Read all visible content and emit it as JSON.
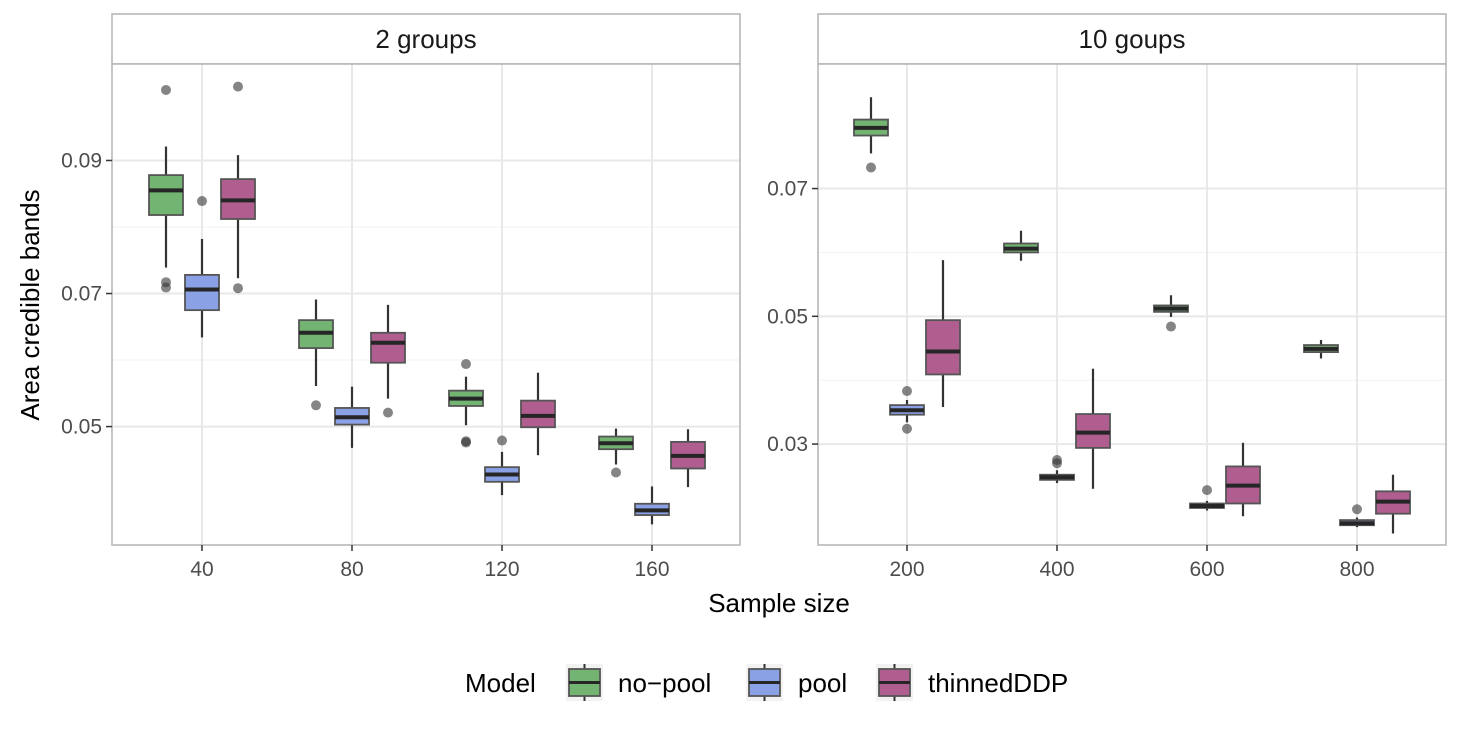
{
  "chart_data": {
    "type": "boxplot",
    "xlabel": "Sample size",
    "ylabel": "Area credible bands",
    "legend": {
      "title": "Model",
      "position": "bottom",
      "entries": [
        {
          "name": "no−pool",
          "color": "#74b472"
        },
        {
          "name": "pool",
          "color": "#8ba1e6"
        },
        {
          "name": "thinnedDDP",
          "color": "#b05d90"
        }
      ]
    },
    "grid": true,
    "panels": [
      {
        "title": "2 groups",
        "x_ticks": [
          40,
          80,
          120,
          160
        ],
        "y_ticks": [
          0.05,
          0.07,
          0.09
        ],
        "ylim": [
          0.0322,
          0.1045
        ],
        "series": [
          {
            "name": "no−pool",
            "boxes": [
              {
                "x": 40,
                "whisker_low": 0.0739,
                "q1": 0.0818,
                "median": 0.0855,
                "q3": 0.0878,
                "whisker_high": 0.0921,
                "outliers": [
                  0.1006,
                  0.0717,
                  0.0709
                ]
              },
              {
                "x": 80,
                "whisker_low": 0.0561,
                "q1": 0.0618,
                "median": 0.0641,
                "q3": 0.066,
                "whisker_high": 0.0691,
                "outliers": [
                  0.0532
                ]
              },
              {
                "x": 120,
                "whisker_low": 0.0502,
                "q1": 0.0531,
                "median": 0.0542,
                "q3": 0.0554,
                "whisker_high": 0.0575,
                "outliers": [
                  0.0594,
                  0.0478,
                  0.0476
                ]
              },
              {
                "x": 160,
                "whisker_low": 0.0443,
                "q1": 0.0466,
                "median": 0.0475,
                "q3": 0.0485,
                "whisker_high": 0.0497,
                "outliers": [
                  0.0431
                ]
              }
            ]
          },
          {
            "name": "pool",
            "boxes": [
              {
                "x": 40,
                "whisker_low": 0.0634,
                "q1": 0.0675,
                "median": 0.0706,
                "q3": 0.0728,
                "whisker_high": 0.0782,
                "outliers": [
                  0.0839
                ]
              },
              {
                "x": 80,
                "whisker_low": 0.0468,
                "q1": 0.0503,
                "median": 0.0514,
                "q3": 0.0528,
                "whisker_high": 0.056,
                "outliers": []
              },
              {
                "x": 120,
                "whisker_low": 0.0397,
                "q1": 0.0417,
                "median": 0.0428,
                "q3": 0.0439,
                "whisker_high": 0.0462,
                "outliers": [
                  0.0479
                ]
              },
              {
                "x": 160,
                "whisker_low": 0.0353,
                "q1": 0.0367,
                "median": 0.0374,
                "q3": 0.0384,
                "whisker_high": 0.041,
                "outliers": []
              }
            ]
          },
          {
            "name": "thinnedDDP",
            "boxes": [
              {
                "x": 40,
                "whisker_low": 0.0723,
                "q1": 0.0812,
                "median": 0.084,
                "q3": 0.0872,
                "whisker_high": 0.0908,
                "outliers": [
                  0.1011,
                  0.0708
                ]
              },
              {
                "x": 80,
                "whisker_low": 0.0542,
                "q1": 0.0596,
                "median": 0.0626,
                "q3": 0.0641,
                "whisker_high": 0.0683,
                "outliers": [
                  0.0521
                ]
              },
              {
                "x": 120,
                "whisker_low": 0.0457,
                "q1": 0.0499,
                "median": 0.0516,
                "q3": 0.0539,
                "whisker_high": 0.0581,
                "outliers": []
              },
              {
                "x": 160,
                "whisker_low": 0.0409,
                "q1": 0.0437,
                "median": 0.0456,
                "q3": 0.0477,
                "whisker_high": 0.0496,
                "outliers": []
              }
            ]
          }
        ]
      },
      {
        "title": "10 goups",
        "x_ticks": [
          200,
          400,
          600,
          800
        ],
        "y_ticks": [
          0.03,
          0.05,
          0.07
        ],
        "ylim": [
          0.0142,
          0.0895
        ],
        "series": [
          {
            "name": "no−pool",
            "boxes": [
              {
                "x": 200,
                "whisker_low": 0.0755,
                "q1": 0.0783,
                "median": 0.0795,
                "q3": 0.0808,
                "whisker_high": 0.0843,
                "outliers": [
                  0.0733
                ]
              },
              {
                "x": 400,
                "whisker_low": 0.0587,
                "q1": 0.06,
                "median": 0.0606,
                "q3": 0.0614,
                "whisker_high": 0.0634,
                "outliers": []
              },
              {
                "x": 600,
                "whisker_low": 0.0499,
                "q1": 0.0507,
                "median": 0.0512,
                "q3": 0.0517,
                "whisker_high": 0.0533,
                "outliers": [
                  0.0484
                ]
              },
              {
                "x": 800,
                "whisker_low": 0.0434,
                "q1": 0.0444,
                "median": 0.0449,
                "q3": 0.0455,
                "whisker_high": 0.0463,
                "outliers": []
              }
            ]
          },
          {
            "name": "pool",
            "boxes": [
              {
                "x": 200,
                "whisker_low": 0.0334,
                "q1": 0.0346,
                "median": 0.0353,
                "q3": 0.0361,
                "whisker_high": 0.0369,
                "outliers": [
                  0.0383,
                  0.0324
                ]
              },
              {
                "x": 400,
                "whisker_low": 0.0239,
                "q1": 0.0244,
                "median": 0.0248,
                "q3": 0.0252,
                "whisker_high": 0.0259,
                "outliers": [
                  0.0275,
                  0.027
                ]
              },
              {
                "x": 600,
                "whisker_low": 0.0196,
                "q1": 0.02,
                "median": 0.0203,
                "q3": 0.0207,
                "whisker_high": 0.0211,
                "outliers": [
                  0.0228
                ]
              },
              {
                "x": 800,
                "whisker_low": 0.017,
                "q1": 0.0173,
                "median": 0.0176,
                "q3": 0.0181,
                "whisker_high": 0.0185,
                "outliers": [
                  0.0198
                ]
              }
            ]
          },
          {
            "name": "thinnedDDP",
            "boxes": [
              {
                "x": 200,
                "whisker_low": 0.0358,
                "q1": 0.0409,
                "median": 0.0445,
                "q3": 0.0494,
                "whisker_high": 0.0588,
                "outliers": []
              },
              {
                "x": 400,
                "whisker_low": 0.023,
                "q1": 0.0294,
                "median": 0.0318,
                "q3": 0.0347,
                "whisker_high": 0.0418,
                "outliers": []
              },
              {
                "x": 600,
                "whisker_low": 0.0187,
                "q1": 0.0207,
                "median": 0.0235,
                "q3": 0.0265,
                "whisker_high": 0.0302,
                "outliers": []
              },
              {
                "x": 800,
                "whisker_low": 0.016,
                "q1": 0.0191,
                "median": 0.021,
                "q3": 0.0226,
                "whisker_high": 0.0252,
                "outliers": []
              }
            ]
          }
        ]
      }
    ]
  }
}
